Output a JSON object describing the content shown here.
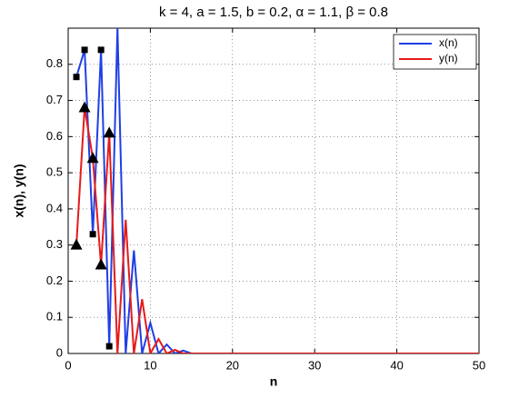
{
  "chart_data": {
    "type": "line",
    "title": "k = 4, a = 1.5, b = 0.2, α = 1.1, β = 0.8",
    "xlabel": "n",
    "ylabel": "x(n),  y(n)",
    "x": [
      1,
      2,
      3,
      4,
      5,
      6,
      7,
      8,
      9,
      10,
      11,
      12,
      13,
      14,
      15,
      16,
      17,
      18,
      19,
      20,
      21,
      22,
      23,
      24,
      25,
      26,
      27,
      28,
      29,
      30,
      31,
      32,
      33,
      34,
      35,
      36,
      37,
      38,
      39,
      40,
      41,
      42,
      43,
      44,
      45,
      46,
      47,
      48,
      49,
      50
    ],
    "series": [
      {
        "name": "x(n)",
        "color": "#1f3fe6",
        "values": [
          0.765,
          0.84,
          0.33,
          0.84,
          0.02,
          0.9,
          0,
          0.285,
          0,
          0.085,
          0,
          0.025,
          0,
          0.008,
          0,
          0,
          0,
          0,
          0,
          0,
          0,
          0,
          0,
          0,
          0,
          0,
          0,
          0,
          0,
          0,
          0,
          0,
          0,
          0,
          0,
          0,
          0,
          0,
          0,
          0,
          0,
          0,
          0,
          0,
          0,
          0,
          0,
          0,
          0,
          0
        ]
      },
      {
        "name": "y(n)",
        "color": "#e61a1a",
        "values": [
          0.3,
          0.68,
          0.54,
          0.245,
          0.61,
          0,
          0.37,
          0,
          0.15,
          0,
          0.04,
          0,
          0.01,
          0,
          0,
          0,
          0,
          0,
          0,
          0,
          0,
          0,
          0,
          0,
          0,
          0,
          0,
          0,
          0,
          0,
          0,
          0,
          0,
          0,
          0,
          0,
          0,
          0,
          0,
          0,
          0,
          0,
          0,
          0,
          0,
          0,
          0,
          0,
          0,
          0
        ]
      }
    ],
    "markers": [
      {
        "shape": "square",
        "color": "#000000",
        "x": [
          1,
          2,
          3,
          4,
          5
        ],
        "values": [
          0.765,
          0.84,
          0.33,
          0.84,
          0.02
        ]
      },
      {
        "shape": "triangle",
        "color": "#000000",
        "x": [
          1,
          2,
          3,
          4,
          5
        ],
        "values": [
          0.3,
          0.68,
          0.54,
          0.245,
          0.61
        ]
      }
    ],
    "xlim": [
      0,
      50
    ],
    "ylim": [
      0,
      0.9
    ],
    "xticks": [
      0,
      10,
      20,
      30,
      40,
      50
    ],
    "yticks": [
      0,
      0.1,
      0.2,
      0.3,
      0.4,
      0.5,
      0.6,
      0.7,
      0.8
    ],
    "grid": true,
    "legend": "northeast"
  }
}
